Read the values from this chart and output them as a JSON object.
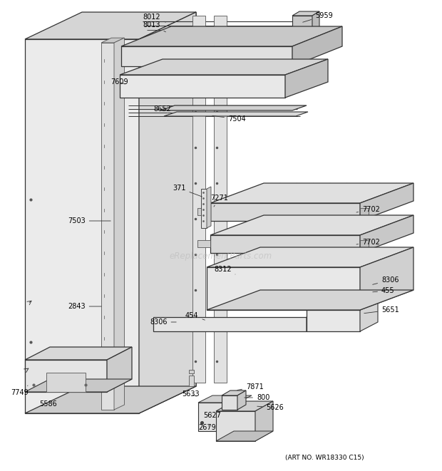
{
  "art_no": "(ART NO. WR18330 C15)",
  "watermark": "eReplacementParts.com",
  "background_color": "#ffffff",
  "line_color": "#555555",
  "label_color": "#000000",
  "figsize": [
    6.2,
    6.61
  ],
  "dpi": 100
}
